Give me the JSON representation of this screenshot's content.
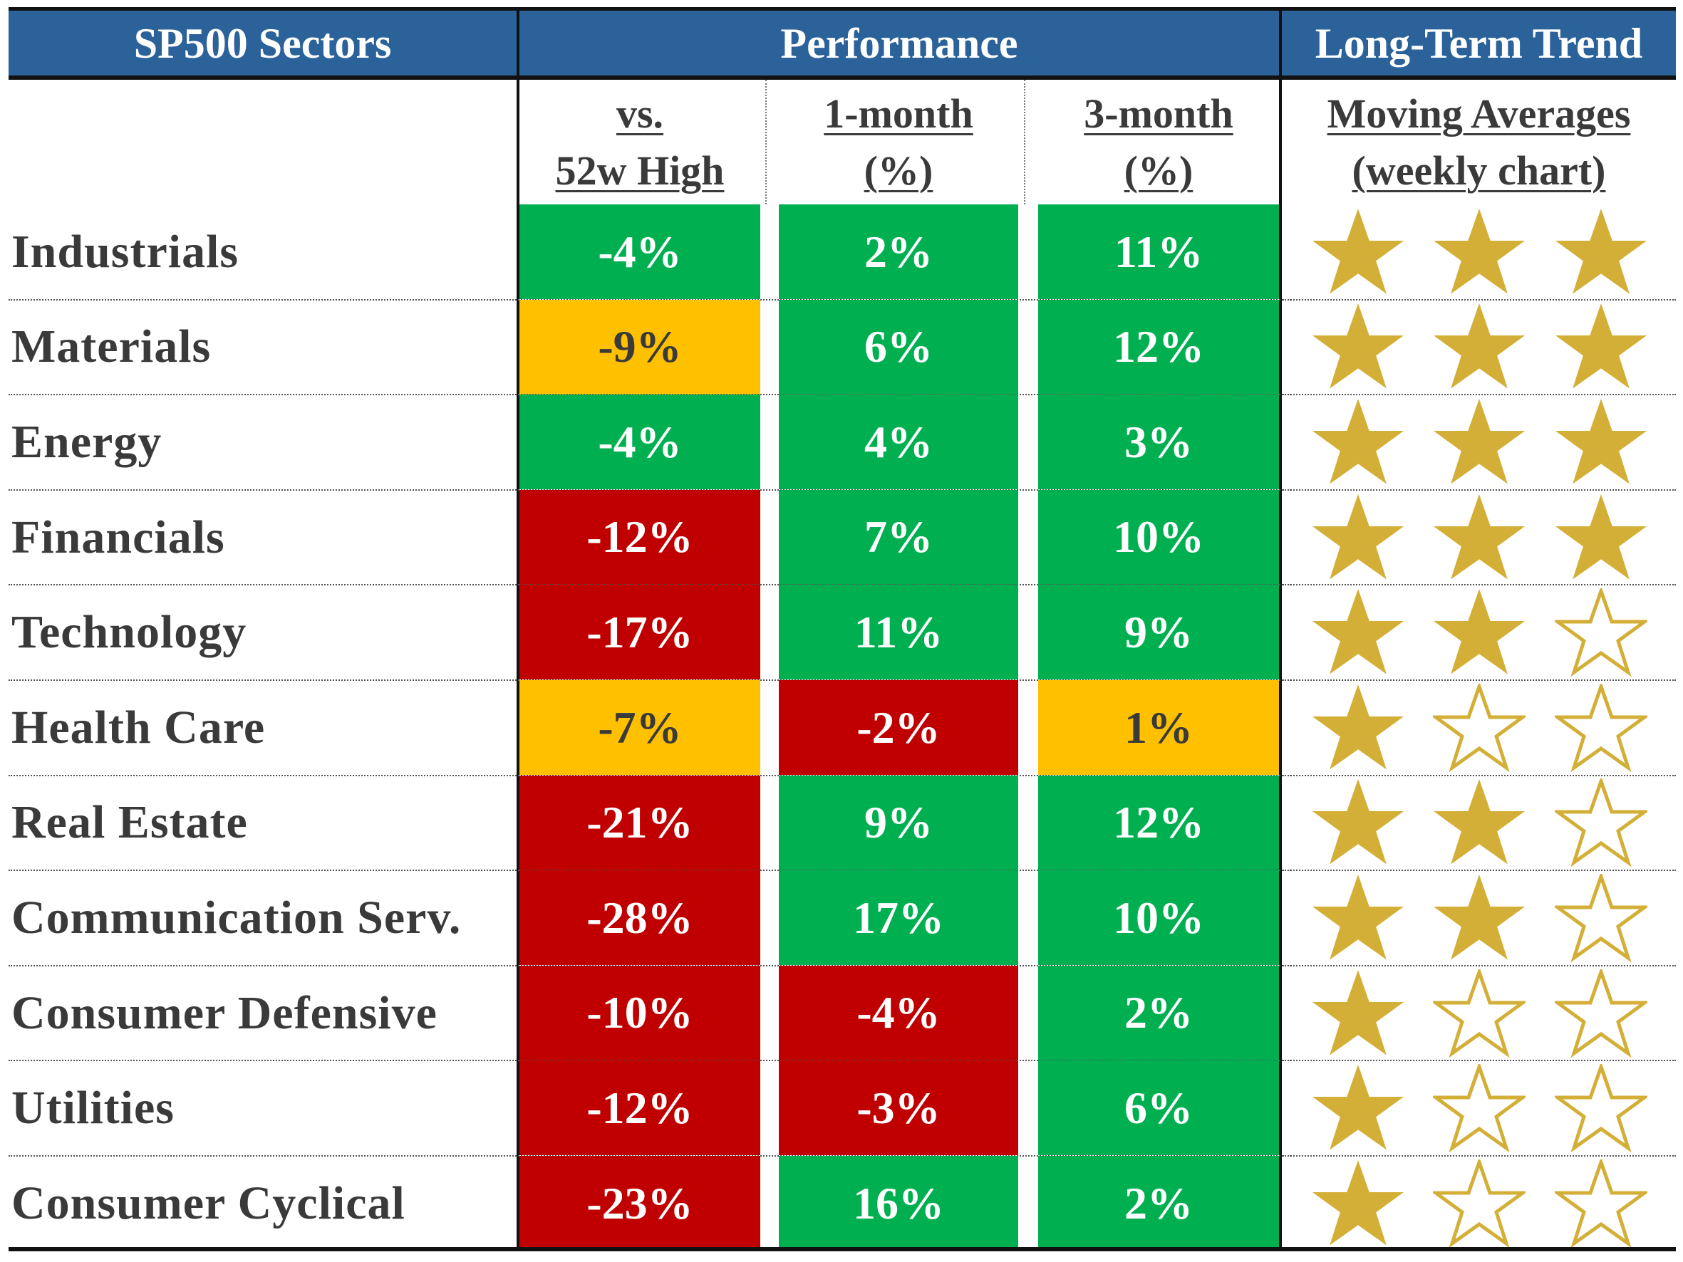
{
  "colors": {
    "header_bg": "#2b6299",
    "green": "#00b050",
    "yellow": "#ffc000",
    "red": "#c00000",
    "gold": "#d4af37"
  },
  "headers": {
    "sectors": "SP500 Sectors",
    "performance": "Performance",
    "trend": "Long-Term Trend"
  },
  "subheaders": {
    "vs_high_1": "vs.",
    "vs_high_2": "52w High",
    "m1_1": "1-month",
    "m1_2": "(%)",
    "m3_1": "3-month",
    "m3_2": "(%)",
    "ma_1": "Moving Averages",
    "ma_2": "(weekly chart)"
  },
  "chart_data": {
    "type": "table",
    "columns": [
      "vs. 52w High",
      "1-month (%)",
      "3-month (%)",
      "Moving Averages (weekly chart)"
    ],
    "rows": [
      {
        "sector": "Industrials",
        "vs_high": "-4%",
        "vs_high_color": "green",
        "m1": "2%",
        "m1_color": "green",
        "m3": "11%",
        "m3_color": "green",
        "stars": 3
      },
      {
        "sector": "Materials",
        "vs_high": "-9%",
        "vs_high_color": "yellow",
        "m1": "6%",
        "m1_color": "green",
        "m3": "12%",
        "m3_color": "green",
        "stars": 3
      },
      {
        "sector": "Energy",
        "vs_high": "-4%",
        "vs_high_color": "green",
        "m1": "4%",
        "m1_color": "green",
        "m3": "3%",
        "m3_color": "green",
        "stars": 3
      },
      {
        "sector": "Financials",
        "vs_high": "-12%",
        "vs_high_color": "red",
        "m1": "7%",
        "m1_color": "green",
        "m3": "10%",
        "m3_color": "green",
        "stars": 3
      },
      {
        "sector": "Technology",
        "vs_high": "-17%",
        "vs_high_color": "red",
        "m1": "11%",
        "m1_color": "green",
        "m3": "9%",
        "m3_color": "green",
        "stars": 2
      },
      {
        "sector": "Health Care",
        "vs_high": "-7%",
        "vs_high_color": "yellow",
        "m1": "-2%",
        "m1_color": "red",
        "m3": "1%",
        "m3_color": "yellow",
        "stars": 1
      },
      {
        "sector": "Real Estate",
        "vs_high": "-21%",
        "vs_high_color": "red",
        "m1": "9%",
        "m1_color": "green",
        "m3": "12%",
        "m3_color": "green",
        "stars": 2
      },
      {
        "sector": "Communication Serv.",
        "vs_high": "-28%",
        "vs_high_color": "red",
        "m1": "17%",
        "m1_color": "green",
        "m3": "10%",
        "m3_color": "green",
        "stars": 2
      },
      {
        "sector": "Consumer Defensive",
        "vs_high": "-10%",
        "vs_high_color": "red",
        "m1": "-4%",
        "m1_color": "red",
        "m3": "2%",
        "m3_color": "green",
        "stars": 1
      },
      {
        "sector": "Utilities",
        "vs_high": "-12%",
        "vs_high_color": "red",
        "m1": "-3%",
        "m1_color": "red",
        "m3": "6%",
        "m3_color": "green",
        "stars": 1
      },
      {
        "sector": "Consumer Cyclical",
        "vs_high": "-23%",
        "vs_high_color": "red",
        "m1": "16%",
        "m1_color": "green",
        "m3": "2%",
        "m3_color": "green",
        "stars": 1
      }
    ],
    "max_stars": 3
  }
}
